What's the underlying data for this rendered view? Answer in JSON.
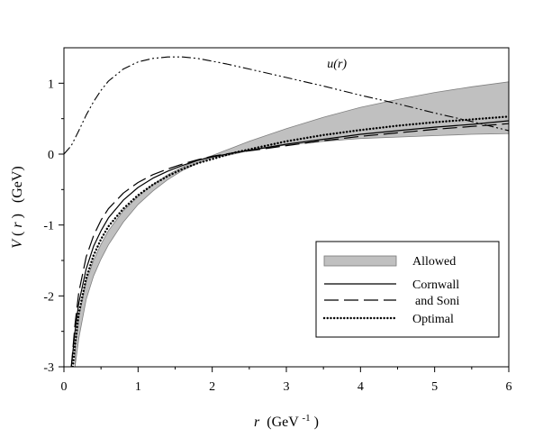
{
  "chart_data": {
    "type": "line",
    "xlabel": {
      "var": "r",
      "unit": "(GeV",
      "exp": "-1",
      "close": ")"
    },
    "ylabel": {
      "var": "V",
      "arg": "(",
      "argvar": "r",
      "close": ")",
      "unit": "(GeV)"
    },
    "xlim": [
      0,
      6
    ],
    "ylim": [
      -3,
      1.5
    ],
    "x_ticks": [
      "0",
      "1",
      "2",
      "3",
      "4",
      "5",
      "6"
    ],
    "y_ticks": [
      "-3",
      "-2",
      "-1",
      "0",
      "1"
    ],
    "grid": false,
    "legend_position": "lower-right",
    "legend": [
      "Allowed",
      "Cornwall",
      "and Soni",
      "Optimal"
    ],
    "annotation": "u(r)",
    "band": {
      "name": "Allowed",
      "x": [
        0.15,
        0.2,
        0.3,
        0.4,
        0.5,
        0.6,
        0.8,
        1.0,
        1.2,
        1.4,
        1.6,
        1.8,
        2.0,
        2.2,
        2.5,
        3.0,
        3.5,
        4.0,
        4.5,
        5.0,
        5.5,
        6.0
      ],
      "upper": [
        -2.7,
        -2.3,
        -1.8,
        -1.5,
        -1.27,
        -1.08,
        -0.8,
        -0.6,
        -0.43,
        -0.29,
        -0.18,
        -0.09,
        -0.02,
        0.06,
        0.18,
        0.36,
        0.52,
        0.66,
        0.77,
        0.87,
        0.95,
        1.02
      ],
      "lower": [
        -3.0,
        -2.6,
        -2.05,
        -1.72,
        -1.48,
        -1.28,
        -0.96,
        -0.71,
        -0.52,
        -0.36,
        -0.23,
        -0.13,
        -0.05,
        -0.02,
        0.05,
        0.13,
        0.18,
        0.22,
        0.24,
        0.26,
        0.28,
        0.29
      ]
    },
    "series": [
      {
        "name": "Cornwall and Soni",
        "style": "solid",
        "x": [
          0.1,
          0.15,
          0.2,
          0.3,
          0.4,
          0.5,
          0.6,
          0.8,
          1.0,
          1.2,
          1.4,
          1.6,
          1.8,
          2.0,
          2.3,
          2.6,
          3.0,
          3.5,
          4.0,
          4.5,
          5.0,
          5.5,
          6.0
        ],
        "y": [
          -3.0,
          -2.5,
          -2.1,
          -1.62,
          -1.3,
          -1.08,
          -0.9,
          -0.65,
          -0.47,
          -0.34,
          -0.24,
          -0.16,
          -0.09,
          -0.04,
          0.02,
          0.07,
          0.14,
          0.21,
          0.28,
          0.33,
          0.38,
          0.42,
          0.47
        ]
      },
      {
        "name": "Cornwall and Soni (long dash)",
        "style": "dashed",
        "x": [
          0.1,
          0.15,
          0.2,
          0.3,
          0.4,
          0.5,
          0.6,
          0.8,
          1.0,
          1.2,
          1.4,
          1.6,
          1.8,
          2.0,
          2.3,
          2.6,
          3.0,
          3.5,
          4.0,
          4.5,
          5.0,
          5.5,
          6.0
        ],
        "y": [
          -3.0,
          -2.4,
          -1.95,
          -1.45,
          -1.15,
          -0.93,
          -0.77,
          -0.55,
          -0.4,
          -0.29,
          -0.21,
          -0.14,
          -0.08,
          -0.03,
          0.02,
          0.06,
          0.12,
          0.19,
          0.25,
          0.3,
          0.35,
          0.39,
          0.43
        ]
      },
      {
        "name": "Optimal",
        "style": "dotted",
        "x": [
          0.12,
          0.15,
          0.2,
          0.3,
          0.4,
          0.5,
          0.6,
          0.8,
          1.0,
          1.2,
          1.4,
          1.6,
          1.8,
          2.0,
          2.3,
          2.6,
          3.0,
          3.5,
          4.0,
          4.5,
          5.0,
          5.5,
          6.0
        ],
        "y": [
          -3.0,
          -2.7,
          -2.25,
          -1.75,
          -1.43,
          -1.2,
          -1.02,
          -0.77,
          -0.58,
          -0.43,
          -0.31,
          -0.21,
          -0.13,
          -0.07,
          0.02,
          0.09,
          0.18,
          0.27,
          0.34,
          0.4,
          0.45,
          0.49,
          0.53
        ]
      },
      {
        "name": "u(r)",
        "style": "dashdotdot",
        "x": [
          0.0,
          0.1,
          0.2,
          0.3,
          0.4,
          0.5,
          0.6,
          0.8,
          1.0,
          1.2,
          1.4,
          1.6,
          1.8,
          2.0,
          2.2,
          2.5,
          3.0,
          3.5,
          4.0,
          4.5,
          5.0,
          5.5,
          6.0
        ],
        "y": [
          0.0,
          0.12,
          0.33,
          0.55,
          0.74,
          0.9,
          1.03,
          1.2,
          1.3,
          1.35,
          1.37,
          1.37,
          1.35,
          1.31,
          1.27,
          1.2,
          1.08,
          0.96,
          0.83,
          0.71,
          0.58,
          0.46,
          0.33
        ]
      }
    ]
  }
}
